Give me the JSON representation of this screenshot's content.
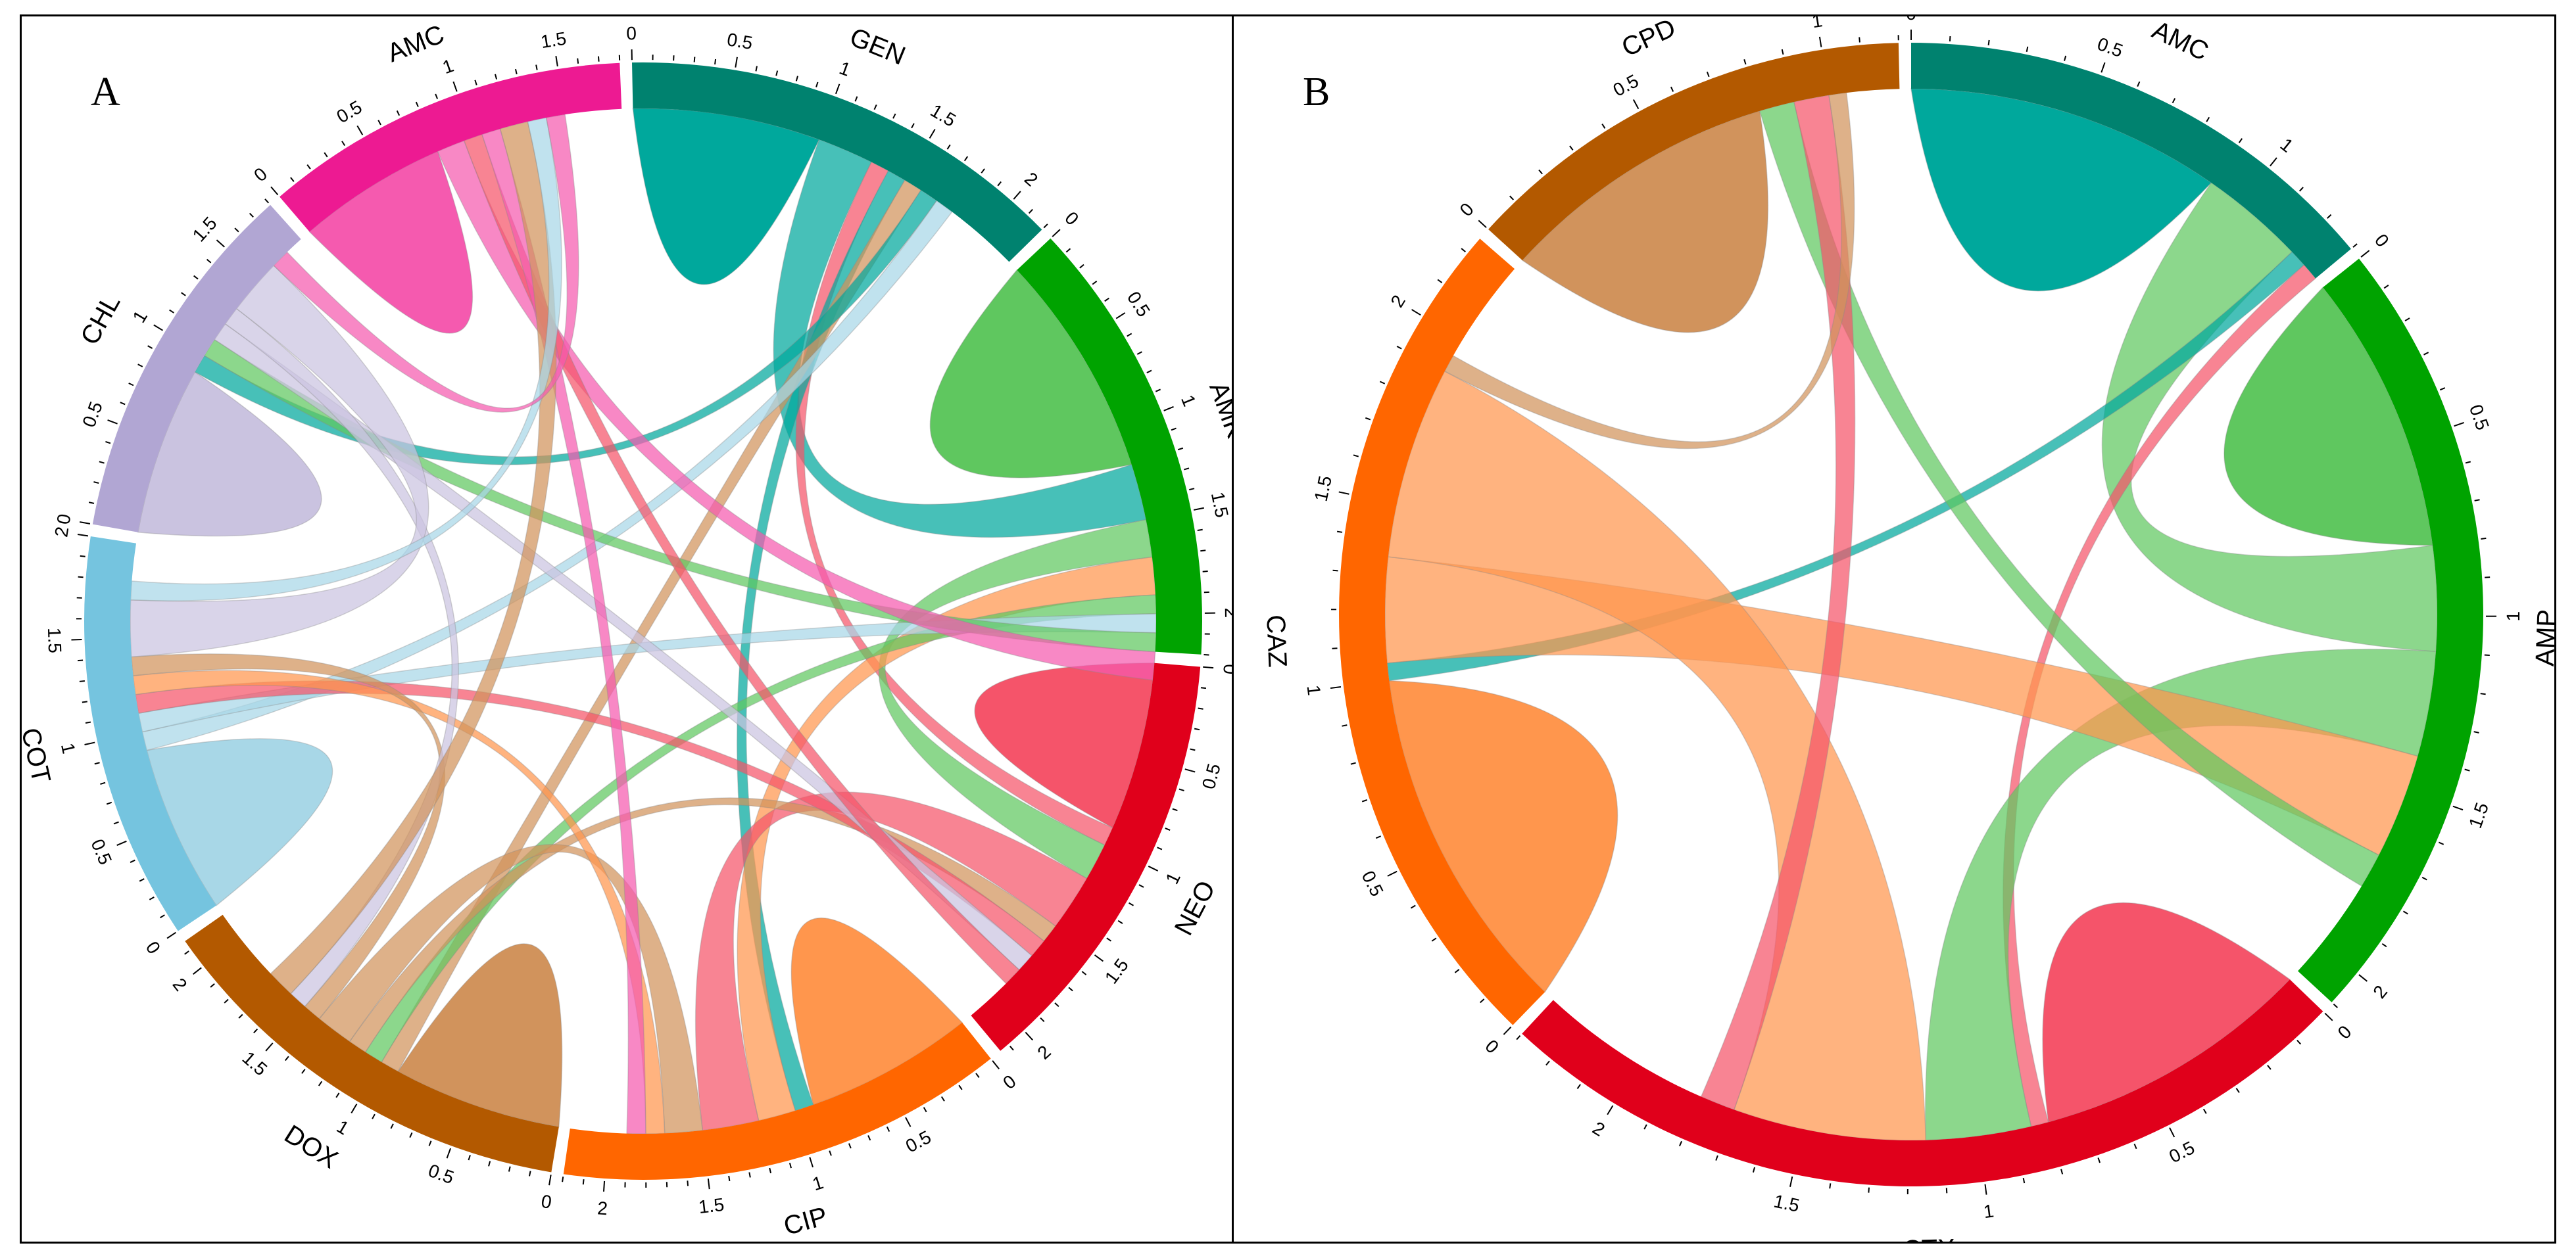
{
  "panels": [
    {
      "letter": "A",
      "groups": [
        {
          "name": "GEN",
          "value": 2.2,
          "color": "#00826f",
          "inner": "#00a89c"
        },
        {
          "name": "AMK",
          "value": 2.2,
          "color": "#00a300",
          "inner": "#5fc75f"
        },
        {
          "name": "NEO",
          "value": 2.15,
          "color": "#e0001b",
          "inner": "#f5546a"
        },
        {
          "name": "CIP",
          "value": 2.2,
          "color": "#ff6600",
          "inner": "#ff964d"
        },
        {
          "name": "DOX",
          "value": 2.15,
          "color": "#b35900",
          "inner": "#d1935c"
        },
        {
          "name": "COT",
          "value": 2.0,
          "color": "#75c4df",
          "inner": "#a8d7e7"
        },
        {
          "name": "CHL",
          "value": 1.8,
          "color": "#b1a6d3",
          "inner": "#cac3e0"
        },
        {
          "name": "AMC",
          "value": 1.8,
          "color": "#ed1a92",
          "inner": "#f55aaf"
        }
      ],
      "chords": [
        {
          "a": "GEN",
          "b": "GEN",
          "v": 1.0
        },
        {
          "a": "AMK",
          "b": "AMK",
          "v": 1.2
        },
        {
          "a": "NEO",
          "b": "NEO",
          "v": 0.9
        },
        {
          "a": "CIP",
          "b": "CIP",
          "v": 0.9
        },
        {
          "a": "DOX",
          "b": "DOX",
          "v": 0.9
        },
        {
          "a": "COT",
          "b": "COT",
          "v": 0.9
        },
        {
          "a": "CHL",
          "b": "CHL",
          "v": 0.9
        },
        {
          "a": "AMC",
          "b": "AMC",
          "v": 0.8
        },
        {
          "a": "GEN",
          "b": "AMK",
          "v": 0.3
        },
        {
          "a": "GEN",
          "b": "NEO",
          "v": 0.1
        },
        {
          "a": "GEN",
          "b": "CIP",
          "v": 0.1
        },
        {
          "a": "GEN",
          "b": "DOX",
          "v": 0.1
        },
        {
          "a": "GEN",
          "b": "CHL",
          "v": 0.1
        },
        {
          "a": "GEN",
          "b": "COT",
          "v": 0.1
        },
        {
          "a": "AMK",
          "b": "NEO",
          "v": 0.2
        },
        {
          "a": "AMK",
          "b": "CIP",
          "v": 0.2
        },
        {
          "a": "AMK",
          "b": "DOX",
          "v": 0.1
        },
        {
          "a": "AMK",
          "b": "COT",
          "v": 0.1
        },
        {
          "a": "AMK",
          "b": "CHL",
          "v": 0.1
        },
        {
          "a": "AMK",
          "b": "AMC",
          "v": 0.15
        },
        {
          "a": "NEO",
          "b": "CIP",
          "v": 0.3
        },
        {
          "a": "NEO",
          "b": "DOX",
          "v": 0.1
        },
        {
          "a": "NEO",
          "b": "COT",
          "v": 0.1
        },
        {
          "a": "NEO",
          "b": "CHL",
          "v": 0.1
        },
        {
          "a": "NEO",
          "b": "AMC",
          "v": 0.1
        },
        {
          "a": "CIP",
          "b": "DOX",
          "v": 0.2
        },
        {
          "a": "CIP",
          "b": "COT",
          "v": 0.1
        },
        {
          "a": "CIP",
          "b": "AMC",
          "v": 0.1
        },
        {
          "a": "DOX",
          "b": "COT",
          "v": 0.1
        },
        {
          "a": "DOX",
          "b": "CHL",
          "v": 0.1
        },
        {
          "a": "DOX",
          "b": "AMC",
          "v": 0.15
        },
        {
          "a": "COT",
          "b": "CHL",
          "v": 0.3
        },
        {
          "a": "COT",
          "b": "AMC",
          "v": 0.1
        },
        {
          "a": "CHL",
          "b": "AMC",
          "v": 0.1
        }
      ]
    },
    {
      "letter": "B",
      "groups": [
        {
          "name": "AMC",
          "value": 1.3,
          "color": "#00826f",
          "inner": "#00a89c"
        },
        {
          "name": "AMP",
          "value": 2.1,
          "color": "#00a300",
          "inner": "#5fc75f"
        },
        {
          "name": "CTX",
          "value": 2.3,
          "color": "#e0001b",
          "inner": "#f5546a"
        },
        {
          "name": "CAZ",
          "value": 2.25,
          "color": "#ff6600",
          "inner": "#ff964d"
        },
        {
          "name": "CPD",
          "value": 1.2,
          "color": "#b35900",
          "inner": "#d1935c"
        }
      ],
      "chords": [
        {
          "a": "AMC",
          "b": "AMC",
          "v": 0.9
        },
        {
          "a": "AMP",
          "b": "AMP",
          "v": 0.8
        },
        {
          "a": "CTX",
          "b": "CTX",
          "v": 0.8
        },
        {
          "a": "CAZ",
          "b": "CAZ",
          "v": 1.0
        },
        {
          "a": "CPD",
          "b": "CPD",
          "v": 0.8
        },
        {
          "a": "AMC",
          "b": "AMP",
          "v": 0.3
        },
        {
          "a": "AMC",
          "b": "CAZ",
          "v": 0.05
        },
        {
          "a": "AMC",
          "b": "CTX",
          "v": 0.05
        },
        {
          "a": "AMP",
          "b": "CTX",
          "v": 0.3
        },
        {
          "a": "AMP",
          "b": "CAZ",
          "v": 0.3
        },
        {
          "a": "AMP",
          "b": "CPD",
          "v": 0.1
        },
        {
          "a": "CTX",
          "b": "CAZ",
          "v": 0.55
        },
        {
          "a": "CTX",
          "b": "CPD",
          "v": 0.1
        },
        {
          "a": "CAZ",
          "b": "CPD",
          "v": 0.05
        }
      ]
    }
  ]
}
